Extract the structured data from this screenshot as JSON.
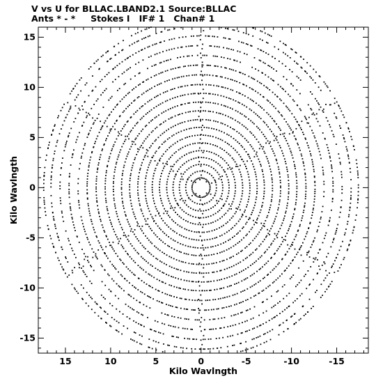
{
  "chart_data": {
    "type": "scatter",
    "title": "V vs U for BLLAC.LBAND2.1   Source:BLLAC",
    "subtitle": "Ants * - *     Stokes I   IF# 1   Chan# 1",
    "xlabel": "Kilo Wavlngth",
    "ylabel": "Kilo Wavlngth",
    "xlim": [
      18,
      -18.5
    ],
    "ylim": [
      -16.5,
      16
    ],
    "x_ticks": [
      15,
      10,
      5,
      0,
      -5,
      -10,
      -15
    ],
    "x_tick_labels": [
      "15",
      "10",
      "5",
      "0",
      "-5",
      "-10",
      "-15"
    ],
    "y_ticks": [
      15,
      10,
      5,
      0,
      -5,
      -10,
      -15
    ],
    "y_tick_labels": [
      "15",
      "10",
      "5",
      "0",
      "-5",
      "-10",
      "-15"
    ],
    "grid": false,
    "legend": "none",
    "point_color": "#000000",
    "pattern": {
      "description": "uv-coverage: concentric elliptical tracks with six radial spokes, points reflected through origin",
      "track_radii": [
        1.0,
        1.7,
        2.4,
        3.1,
        3.8,
        4.6,
        5.4,
        6.2,
        7.0,
        7.9,
        8.8,
        9.7,
        10.6,
        11.6,
        12.6,
        13.6,
        14.6,
        15.6,
        16.6,
        17.4
      ],
      "spoke_angles_deg": [
        90,
        270,
        30,
        210,
        150,
        330
      ]
    }
  }
}
